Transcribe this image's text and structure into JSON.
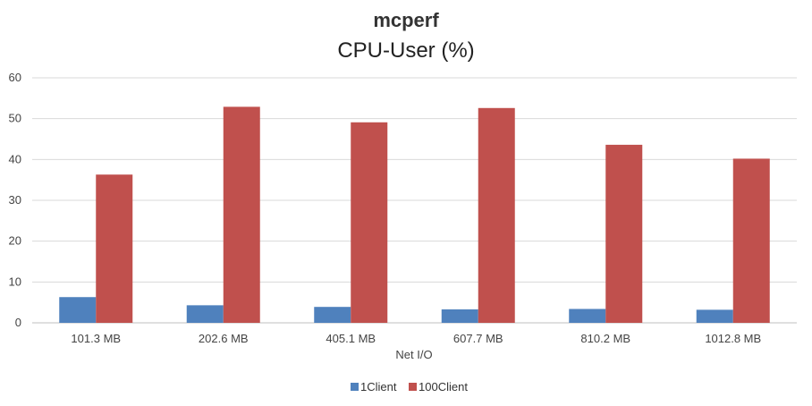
{
  "chart_data": {
    "type": "bar",
    "title": "mcperf",
    "subtitle": "CPU-User (%)",
    "xlabel": "Net I/O",
    "ylabel": "",
    "categories": [
      "101.3 MB",
      "202.6 MB",
      "405.1 MB",
      "607.7 MB",
      "810.2 MB",
      "1012.8 MB"
    ],
    "series": [
      {
        "name": "1Client",
        "color": "#4f81bd",
        "values": [
          6.3,
          4.3,
          3.9,
          3.3,
          3.4,
          3.2
        ]
      },
      {
        "name": "100Client",
        "color": "#c0504d",
        "values": [
          36.3,
          52.9,
          49.1,
          52.6,
          43.6,
          40.2
        ]
      }
    ],
    "ylim": [
      0,
      60
    ],
    "yticks": [
      0,
      10,
      20,
      30,
      40,
      50,
      60
    ],
    "grid": true,
    "legend_position": "bottom"
  }
}
